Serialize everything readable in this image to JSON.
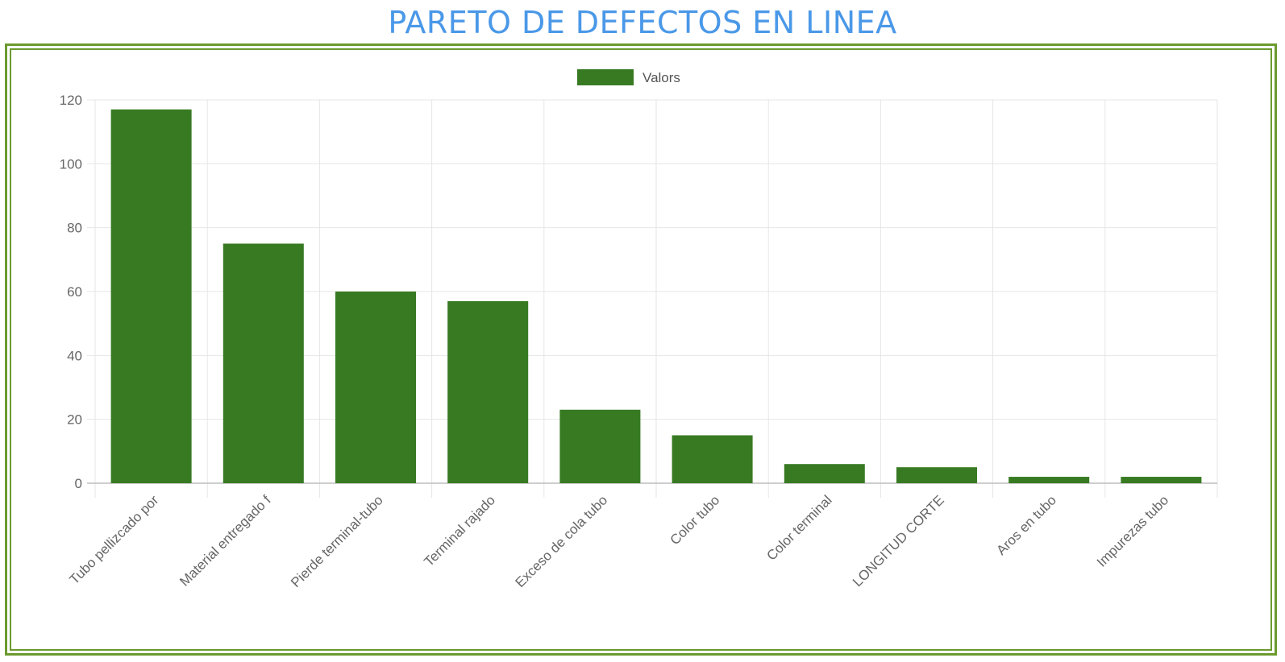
{
  "page": {
    "title": "PARETO DE DEFECTOS EN LINEA"
  },
  "colors": {
    "title": "#4a98e8",
    "frame": "#6b9a2e",
    "bar": "#377a22",
    "grid": "#e6e6e6",
    "axis_text": "#666666"
  },
  "chart_data": {
    "type": "bar",
    "title": "",
    "xlabel": "",
    "ylabel": "",
    "categories": [
      "Tubo pellizcado por",
      "Material entregado f",
      "Pierde terminal-tubo",
      "Terminal rajado",
      "Exceso de cola tubo",
      "Color tubo",
      "Color terminal",
      "LONGITUD CORTE",
      "Aros en tubo",
      "Impurezas tubo"
    ],
    "series": [
      {
        "name": "Valors",
        "values": [
          117,
          75,
          60,
          57,
          23,
          15,
          6,
          5,
          2,
          2
        ]
      }
    ],
    "ylim": [
      0,
      120
    ],
    "yticks": [
      0,
      20,
      40,
      60,
      80,
      100,
      120
    ],
    "grid": true,
    "legend_position": "top-center"
  }
}
